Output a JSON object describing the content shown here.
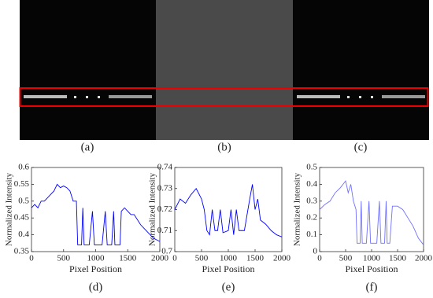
{
  "panel_labels": [
    "(a)",
    "(b)",
    "(c)"
  ],
  "chart_data": [
    {
      "type": "line",
      "label": "(d)",
      "xlabel": "Pixel Position",
      "ylabel": "Normalized Intensity",
      "x": [
        0,
        50,
        100,
        150,
        200,
        250,
        300,
        350,
        400,
        450,
        500,
        550,
        600,
        650,
        700,
        720,
        780,
        800,
        820,
        900,
        950,
        980,
        1100,
        1150,
        1180,
        1250,
        1280,
        1300,
        1380,
        1400,
        1450,
        1500,
        1550,
        1600,
        1700,
        1800,
        1900,
        2000
      ],
      "series": [
        {
          "color": "#0000ff",
          "values": [
            0.48,
            0.49,
            0.48,
            0.5,
            0.5,
            0.51,
            0.52,
            0.53,
            0.55,
            0.54,
            0.545,
            0.54,
            0.53,
            0.5,
            0.5,
            0.37,
            0.37,
            0.48,
            0.37,
            0.37,
            0.47,
            0.37,
            0.37,
            0.47,
            0.37,
            0.37,
            0.47,
            0.37,
            0.37,
            0.47,
            0.48,
            0.47,
            0.46,
            0.46,
            0.43,
            0.41,
            0.39,
            0.38
          ]
        }
      ],
      "xlim": [
        0,
        2000
      ],
      "ylim": [
        0.35,
        0.6
      ],
      "xticks": [
        0,
        500,
        1000,
        1500,
        2000
      ],
      "yticks": [
        0.35,
        0.4,
        0.45,
        0.5,
        0.55,
        0.6
      ]
    },
    {
      "type": "line",
      "label": "(e)",
      "xlabel": "Pixel Position",
      "ylabel": "Normalized Intensity",
      "x": [
        0,
        100,
        200,
        300,
        400,
        500,
        550,
        600,
        650,
        700,
        750,
        800,
        850,
        900,
        1000,
        1050,
        1100,
        1150,
        1200,
        1300,
        1400,
        1450,
        1500,
        1550,
        1600,
        1700,
        1800,
        1900,
        2000
      ],
      "series": [
        {
          "color": "#0000ff",
          "values": [
            0.72,
            0.725,
            0.723,
            0.727,
            0.73,
            0.725,
            0.72,
            0.71,
            0.708,
            0.72,
            0.71,
            0.71,
            0.72,
            0.709,
            0.71,
            0.72,
            0.708,
            0.72,
            0.71,
            0.71,
            0.725,
            0.732,
            0.72,
            0.725,
            0.715,
            0.713,
            0.71,
            0.708,
            0.707
          ]
        }
      ],
      "xlim": [
        0,
        2000
      ],
      "ylim": [
        0.7,
        0.74
      ],
      "xticks": [
        0,
        500,
        1000,
        1500,
        2000
      ],
      "yticks": [
        0.7,
        0.71,
        0.72,
        0.73,
        0.74
      ]
    },
    {
      "type": "line",
      "label": "(f)",
      "xlabel": "Pixel Position",
      "ylabel": "Normalized Intensity",
      "x": [
        0,
        100,
        200,
        300,
        400,
        500,
        550,
        600,
        650,
        700,
        720,
        780,
        800,
        820,
        900,
        950,
        980,
        1100,
        1150,
        1180,
        1250,
        1280,
        1300,
        1350,
        1400,
        1500,
        1600,
        1700,
        1800,
        1900,
        2000
      ],
      "series": [
        {
          "color": "#7070ff",
          "values": [
            0.25,
            0.28,
            0.3,
            0.35,
            0.38,
            0.42,
            0.35,
            0.4,
            0.3,
            0.25,
            0.05,
            0.05,
            0.3,
            0.05,
            0.05,
            0.3,
            0.05,
            0.05,
            0.3,
            0.05,
            0.05,
            0.3,
            0.05,
            0.05,
            0.27,
            0.27,
            0.25,
            0.2,
            0.15,
            0.08,
            0.04
          ]
        }
      ],
      "xlim": [
        0,
        2000
      ],
      "ylim": [
        0,
        0.5
      ],
      "xticks": [
        0,
        500,
        1000,
        1500,
        2000
      ],
      "yticks": [
        0,
        0.1,
        0.2,
        0.3,
        0.4,
        0.5
      ]
    }
  ]
}
